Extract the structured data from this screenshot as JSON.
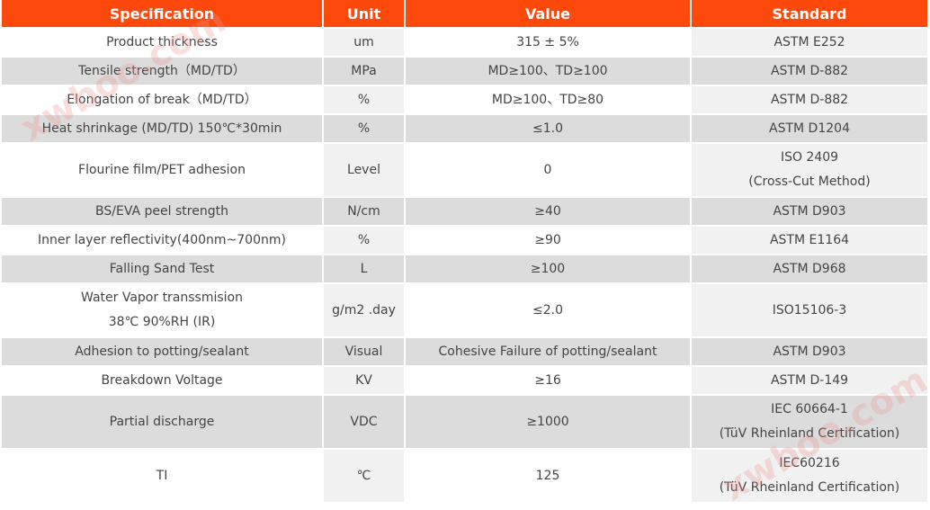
{
  "table": {
    "header": [
      "Specification",
      "Unit",
      "Value",
      "Standard"
    ],
    "rows": [
      [
        "Product thickness",
        "um",
        "315 ± 5%",
        "ASTM E252"
      ],
      [
        "Tensile strength（MD/TD）",
        "MPa",
        "MD≥100、TD≥100",
        "ASTM D-882"
      ],
      [
        "Elongation of break（MD/TD）",
        "%",
        "MD≥100、TD≥80",
        "ASTM D-882"
      ],
      [
        "Heat shrinkage (MD/TD) 150℃*30min",
        "%",
        "≤1.0",
        "ASTM D1204"
      ],
      [
        "Flourine film/PET adhesion",
        "Level",
        "0",
        [
          "ISO 2409",
          "(Cross-Cut Method)"
        ]
      ],
      [
        "BS/EVA peel strength",
        "N/cm",
        "≥40",
        "ASTM D903"
      ],
      [
        "Inner layer reflectivity(400nm~700nm)",
        "%",
        "≥90",
        "ASTM E1164"
      ],
      [
        "Falling Sand Test",
        "L",
        "≥100",
        "ASTM D968"
      ],
      [
        [
          "Water Vapor transsmision",
          "38℃ 90%RH (IR)"
        ],
        "g/m2 .day",
        "≤2.0",
        "ISO15106-3"
      ],
      [
        "Adhesion to potting/sealant",
        "Visual",
        "Cohesive Failure of potting/sealant",
        "ASTM D903"
      ],
      [
        "Breakdown Voltage",
        "KV",
        "≥16",
        "ASTM D-149"
      ],
      [
        "Partial discharge",
        "VDC",
        "≥1000",
        [
          "IEC 60664-1",
          "(TüV Rheinland Certification)"
        ]
      ],
      [
        "TI",
        "℃",
        "125",
        [
          "IEC60216",
          "(TüV Rheinland Certification)"
        ]
      ]
    ]
  },
  "watermark": "xwboo.com"
}
